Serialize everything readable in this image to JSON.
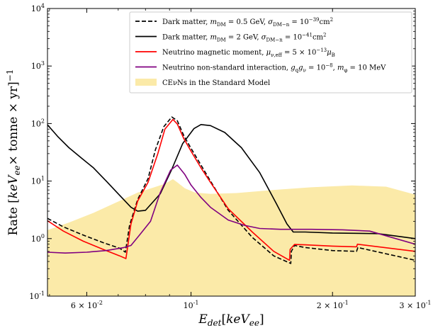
{
  "chart_data": {
    "type": "line",
    "xlabel": "E_det[keV_ee]",
    "ylabel": "Rate [keV_ee× tonne × yr]^-1",
    "x_scale": "log",
    "y_scale": "log",
    "xlim": [
      0.0495,
      0.3
    ],
    "ylim": [
      0.1,
      10000
    ],
    "x_ticks": [
      {
        "value": 0.06,
        "label": "6 × 10^-2"
      },
      {
        "value": 0.1,
        "label": "10^-1"
      },
      {
        "value": 0.2,
        "label": "2 × 10^-1"
      },
      {
        "value": 0.3,
        "label": "3 × 10^-1"
      }
    ],
    "y_ticks": [
      {
        "value": 0.1,
        "label": "10^-1"
      },
      {
        "value": 1,
        "label": "10^0"
      },
      {
        "value": 10,
        "label": "10^1"
      },
      {
        "value": 100,
        "label": "10^2"
      },
      {
        "value": 1000,
        "label": "10^3"
      },
      {
        "value": 10000,
        "label": "10^4"
      }
    ],
    "grid": false,
    "legend_position": "top-right",
    "series": [
      {
        "name": "Dark matter, m_DM = 0.5 GeV, σ_DM−n = 10^−39 cm^2",
        "color": "#000000",
        "style": "dashed",
        "x": [
          0.0495,
          0.0535,
          0.059,
          0.065,
          0.0705,
          0.0725,
          0.074,
          0.077,
          0.081,
          0.084,
          0.0875,
          0.091,
          0.0935,
          0.0965,
          0.1,
          0.105,
          0.11,
          0.12,
          0.135,
          0.15,
          0.163,
          0.1635,
          0.166,
          0.175,
          0.2,
          0.225,
          0.2265,
          0.3
        ],
        "y": [
          2.25,
          1.6,
          1.15,
          0.85,
          0.68,
          0.58,
          1.7,
          4.8,
          11,
          35,
          88,
          130,
          112,
          62,
          37,
          19,
          10,
          3.1,
          1.05,
          0.5,
          0.37,
          0.6,
          0.76,
          0.7,
          0.62,
          0.6,
          0.7,
          0.42
        ]
      },
      {
        "name": "Dark matter, m_DM = 2 GeV, σ_DM−n = 10^−41 cm^2",
        "color": "#000000",
        "style": "solid",
        "x": [
          0.0495,
          0.052,
          0.055,
          0.0585,
          0.062,
          0.066,
          0.07,
          0.0745,
          0.077,
          0.08,
          0.086,
          0.091,
          0.096,
          0.1015,
          0.105,
          0.11,
          0.118,
          0.128,
          0.14,
          0.152,
          0.16,
          0.165,
          0.175,
          0.2,
          0.25,
          0.3
        ],
        "y": [
          95,
          60,
          38,
          25,
          17,
          10,
          6,
          3.5,
          3.0,
          3.1,
          6,
          16,
          45,
          82,
          96,
          92,
          70,
          38,
          14,
          4,
          1.8,
          1.3,
          1.3,
          1.25,
          1.22,
          1.0
        ]
      },
      {
        "name": "Neutrino magnetic moment, μ_ν,eff = 5 × 10^−13 μ_B",
        "color": "#ff0000",
        "style": "solid",
        "x": [
          0.0495,
          0.0535,
          0.059,
          0.065,
          0.0705,
          0.0727,
          0.0745,
          0.077,
          0.081,
          0.085,
          0.088,
          0.0915,
          0.0935,
          0.0965,
          0.1,
          0.105,
          0.11,
          0.12,
          0.135,
          0.15,
          0.162,
          0.1625,
          0.166,
          0.175,
          0.2,
          0.225,
          0.226,
          0.3
        ],
        "y": [
          2.05,
          1.35,
          0.9,
          0.65,
          0.5,
          0.45,
          1.8,
          4.5,
          9.5,
          30,
          80,
          118,
          98,
          55,
          33,
          17,
          9.5,
          3.3,
          1.3,
          0.6,
          0.42,
          0.65,
          0.79,
          0.78,
          0.74,
          0.72,
          0.8,
          0.6
        ]
      },
      {
        "name": "Neutrino non-standard interaction, g_q g_ν = 10^−8, m_φ = 10 MeV",
        "color": "#800080",
        "style": "solid",
        "x": [
          0.0495,
          0.054,
          0.06,
          0.066,
          0.072,
          0.0745,
          0.078,
          0.082,
          0.086,
          0.0905,
          0.0935,
          0.097,
          0.1,
          0.105,
          0.11,
          0.12,
          0.13,
          0.14,
          0.155,
          0.18,
          0.21,
          0.24,
          0.3
        ],
        "y": [
          0.58,
          0.56,
          0.58,
          0.62,
          0.7,
          0.76,
          1.2,
          2.0,
          6.3,
          15.5,
          19,
          13,
          8.5,
          5.2,
          3.5,
          2.1,
          1.7,
          1.5,
          1.45,
          1.45,
          1.42,
          1.35,
          0.8
        ]
      },
      {
        "name": "CEνNs in the Standard Model",
        "color": "#fbeaa8",
        "style": "fill",
        "x": [
          0.0495,
          0.055,
          0.062,
          0.07,
          0.077,
          0.0835,
          0.088,
          0.0915,
          0.0935,
          0.097,
          0.102,
          0.11,
          0.125,
          0.15,
          0.18,
          0.22,
          0.26,
          0.3
        ],
        "y": [
          1.4,
          1.9,
          2.8,
          4.4,
          6.3,
          7.8,
          9.0,
          10.8,
          9.5,
          7.5,
          6.3,
          6.0,
          6.2,
          7.0,
          7.8,
          8.4,
          8.0,
          5.8
        ]
      }
    ]
  }
}
